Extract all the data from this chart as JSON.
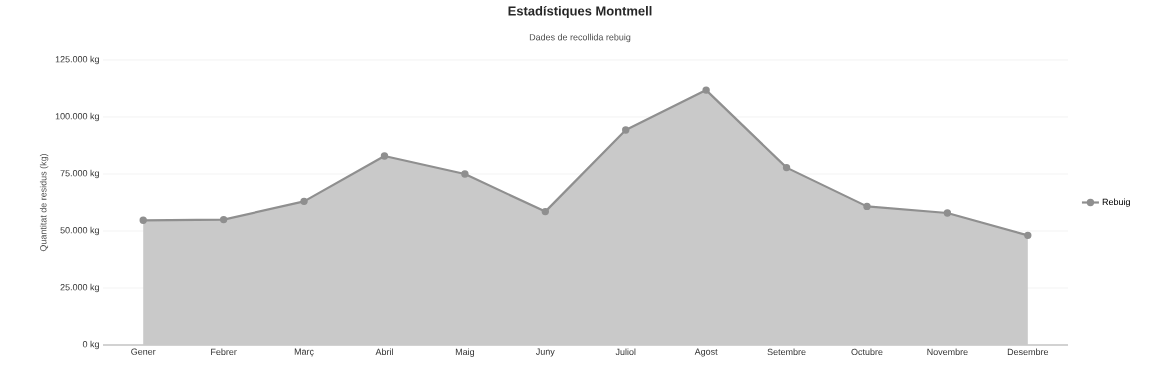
{
  "chart_data": {
    "type": "area",
    "title": "Estadístiques Montmell",
    "subtitle": "Dades de recollida rebuig",
    "ylabel": "Quantitat de residus (kg)",
    "categories": [
      "Gener",
      "Febrer",
      "Març",
      "Abril",
      "Maig",
      "Juny",
      "Juliol",
      "Agost",
      "Setembre",
      "Octubre",
      "Novembre",
      "Desembre"
    ],
    "series": [
      {
        "name": "Rebuig",
        "color": "#8f8f8f",
        "values": [
          54700,
          55000,
          63000,
          82900,
          75000,
          58500,
          94300,
          111800,
          77800,
          60800,
          57900,
          48100
        ]
      }
    ],
    "ylim": [
      0,
      125000
    ],
    "yticks": [
      {
        "value": 0,
        "label": "0 kg"
      },
      {
        "value": 25000,
        "label": "25.000 kg"
      },
      {
        "value": 50000,
        "label": "50.000 kg"
      },
      {
        "value": 75000,
        "label": "75.000 kg"
      },
      {
        "value": 100000,
        "label": "100.000 kg"
      },
      {
        "value": 125000,
        "label": "125.000 kg"
      }
    ],
    "grid": "y",
    "legend": "right",
    "marker": "circle",
    "line_style": "solid"
  }
}
